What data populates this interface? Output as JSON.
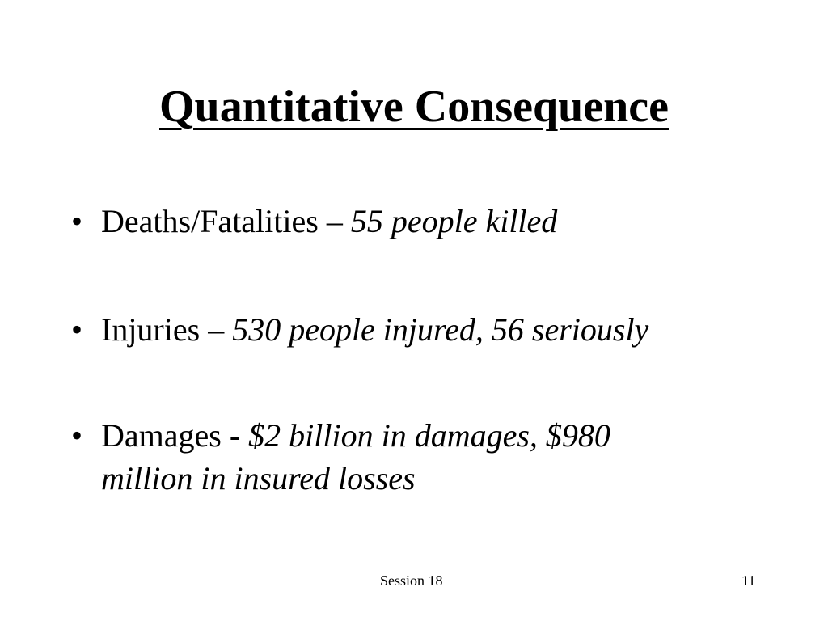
{
  "slide": {
    "title": "Quantitative Consequence",
    "bullets": [
      {
        "label": "Deaths/Fatalities – ",
        "detail": "55 people killed"
      },
      {
        "label": "Injuries – ",
        "detail": "530 people injured, 56 seriously"
      },
      {
        "label": "Damages - ",
        "detail": "$2 billion in damages, $980 million in insured losses"
      }
    ],
    "bullet_glyph": "•",
    "footer": {
      "center": "Session 18",
      "page_number": "11"
    }
  }
}
